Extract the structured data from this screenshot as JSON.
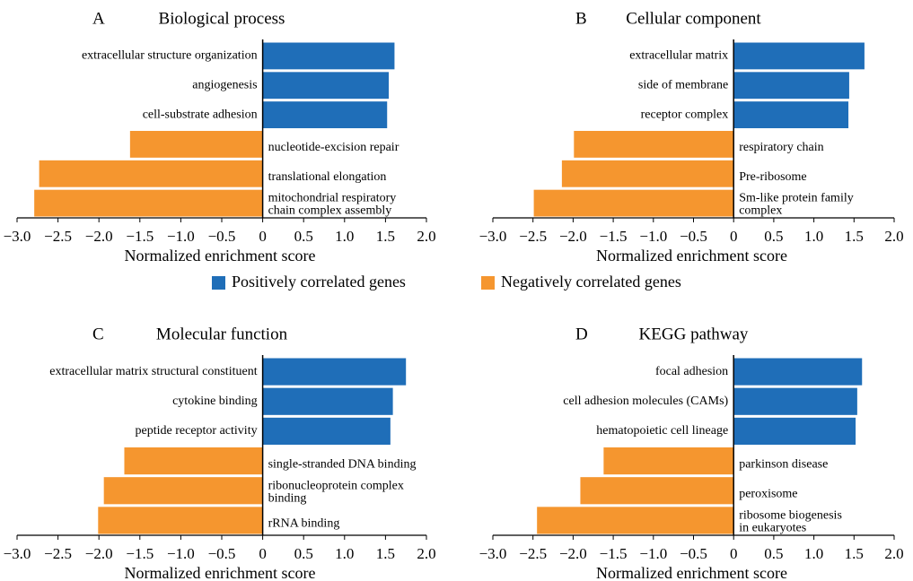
{
  "legend": [
    {
      "name": "Positively correlated genes",
      "color": "#1f6eb8"
    },
    {
      "name": "Negatively correlated genes",
      "color": "#f5962f"
    }
  ],
  "chart_data": [
    {
      "type": "bar",
      "label": "A",
      "title": "Biological process",
      "xlabel": "Normalized enrichment score",
      "categories": [
        "extracellular structure organization",
        "angiogenesis",
        "cell-substrate adhesion",
        "nucleotide-excision repair",
        "translational elongation",
        [
          "mitochondrial respiratory",
          "chain complex assembly"
        ]
      ],
      "values": [
        1.61,
        1.54,
        1.52,
        -1.62,
        -2.73,
        -2.79
      ],
      "xlim": [
        -3,
        2
      ],
      "xticks": [
        {
          "value": -3,
          "label": "−3.0"
        },
        {
          "value": -2.5,
          "label": "−2.5"
        },
        {
          "value": -2,
          "label": "−2.0"
        },
        {
          "value": -1.5,
          "label": "−1.5"
        },
        {
          "value": -1,
          "label": "−1.0"
        },
        {
          "value": -0.5,
          "label": "−0.5"
        },
        0,
        0.5,
        {
          "value": 1,
          "label": "1.0"
        },
        1.5,
        {
          "value": 2,
          "label": "2.0"
        }
      ]
    },
    {
      "type": "bar",
      "label": "B",
      "title": "Cellular component",
      "xlabel": "Normalized enrichment score",
      "categories": [
        "extracellular matrix",
        "side of membrane",
        "receptor complex",
        "respiratory chain",
        "Pre-ribosome",
        [
          "Sm-like protein family",
          "complex"
        ]
      ],
      "values": [
        1.63,
        1.44,
        1.43,
        -1.99,
        -2.14,
        -2.49
      ],
      "xlim": [
        -3,
        2
      ],
      "xticks": [
        {
          "value": -3,
          "label": "−3.0"
        },
        {
          "value": -2.5,
          "label": "−2.5"
        },
        {
          "value": -2,
          "label": "−2.0"
        },
        {
          "value": -1.5,
          "label": "−1.5"
        },
        {
          "value": -1,
          "label": "−1.0"
        },
        {
          "value": -0.5,
          "label": "−0.5"
        },
        0,
        0.5,
        {
          "value": 1,
          "label": "1.0"
        },
        1.5,
        {
          "value": 2,
          "label": "2.0"
        }
      ]
    },
    {
      "type": "bar",
      "label": "C",
      "title": "Molecular function",
      "xlabel": "Normalized enrichment score",
      "categories": [
        "extracellular matrix structural constituent",
        "cytokine binding",
        "peptide receptor activity",
        "single-stranded DNA binding",
        [
          "ribonucleoprotein complex",
          "binding"
        ],
        "rRNA binding"
      ],
      "values": [
        1.75,
        1.59,
        1.56,
        -1.69,
        -1.94,
        -2.01
      ],
      "xlim": [
        -3,
        2
      ],
      "xticks": [
        {
          "value": -3,
          "label": "−3.0"
        },
        {
          "value": -2.5,
          "label": "−2.5"
        },
        {
          "value": -2,
          "label": "−2.0"
        },
        {
          "value": -1.5,
          "label": "−1.5"
        },
        {
          "value": -1,
          "label": "−1.0"
        },
        {
          "value": -0.5,
          "label": "−0.5"
        },
        0,
        0.5,
        {
          "value": 1,
          "label": "1.0"
        },
        1.5,
        {
          "value": 2,
          "label": "2.0"
        }
      ]
    },
    {
      "type": "bar",
      "label": "D",
      "title": "KEGG pathway",
      "xlabel": "Normalized enrichment score",
      "categories": [
        "focal adhesion",
        "cell adhesion molecules (CAMs)",
        "hematopoietic cell lineage",
        "parkinson disease",
        "peroxisome",
        [
          "ribosome biogenesis",
          "in eukaryotes"
        ]
      ],
      "values": [
        1.6,
        1.54,
        1.52,
        -1.62,
        -1.91,
        -2.45
      ],
      "xlim": [
        -3,
        2
      ],
      "xticks": [
        {
          "value": -3,
          "label": "−3.0"
        },
        {
          "value": -2.5,
          "label": "−2.5"
        },
        {
          "value": -2,
          "label": "−2.0"
        },
        {
          "value": -1.5,
          "label": "−1.5"
        },
        {
          "value": -1,
          "label": "−1.0"
        },
        {
          "value": -0.5,
          "label": "−0.5"
        },
        0,
        0.5,
        {
          "value": 1,
          "label": "1.0"
        },
        1.5,
        {
          "value": 2,
          "label": "2.0"
        }
      ]
    }
  ]
}
